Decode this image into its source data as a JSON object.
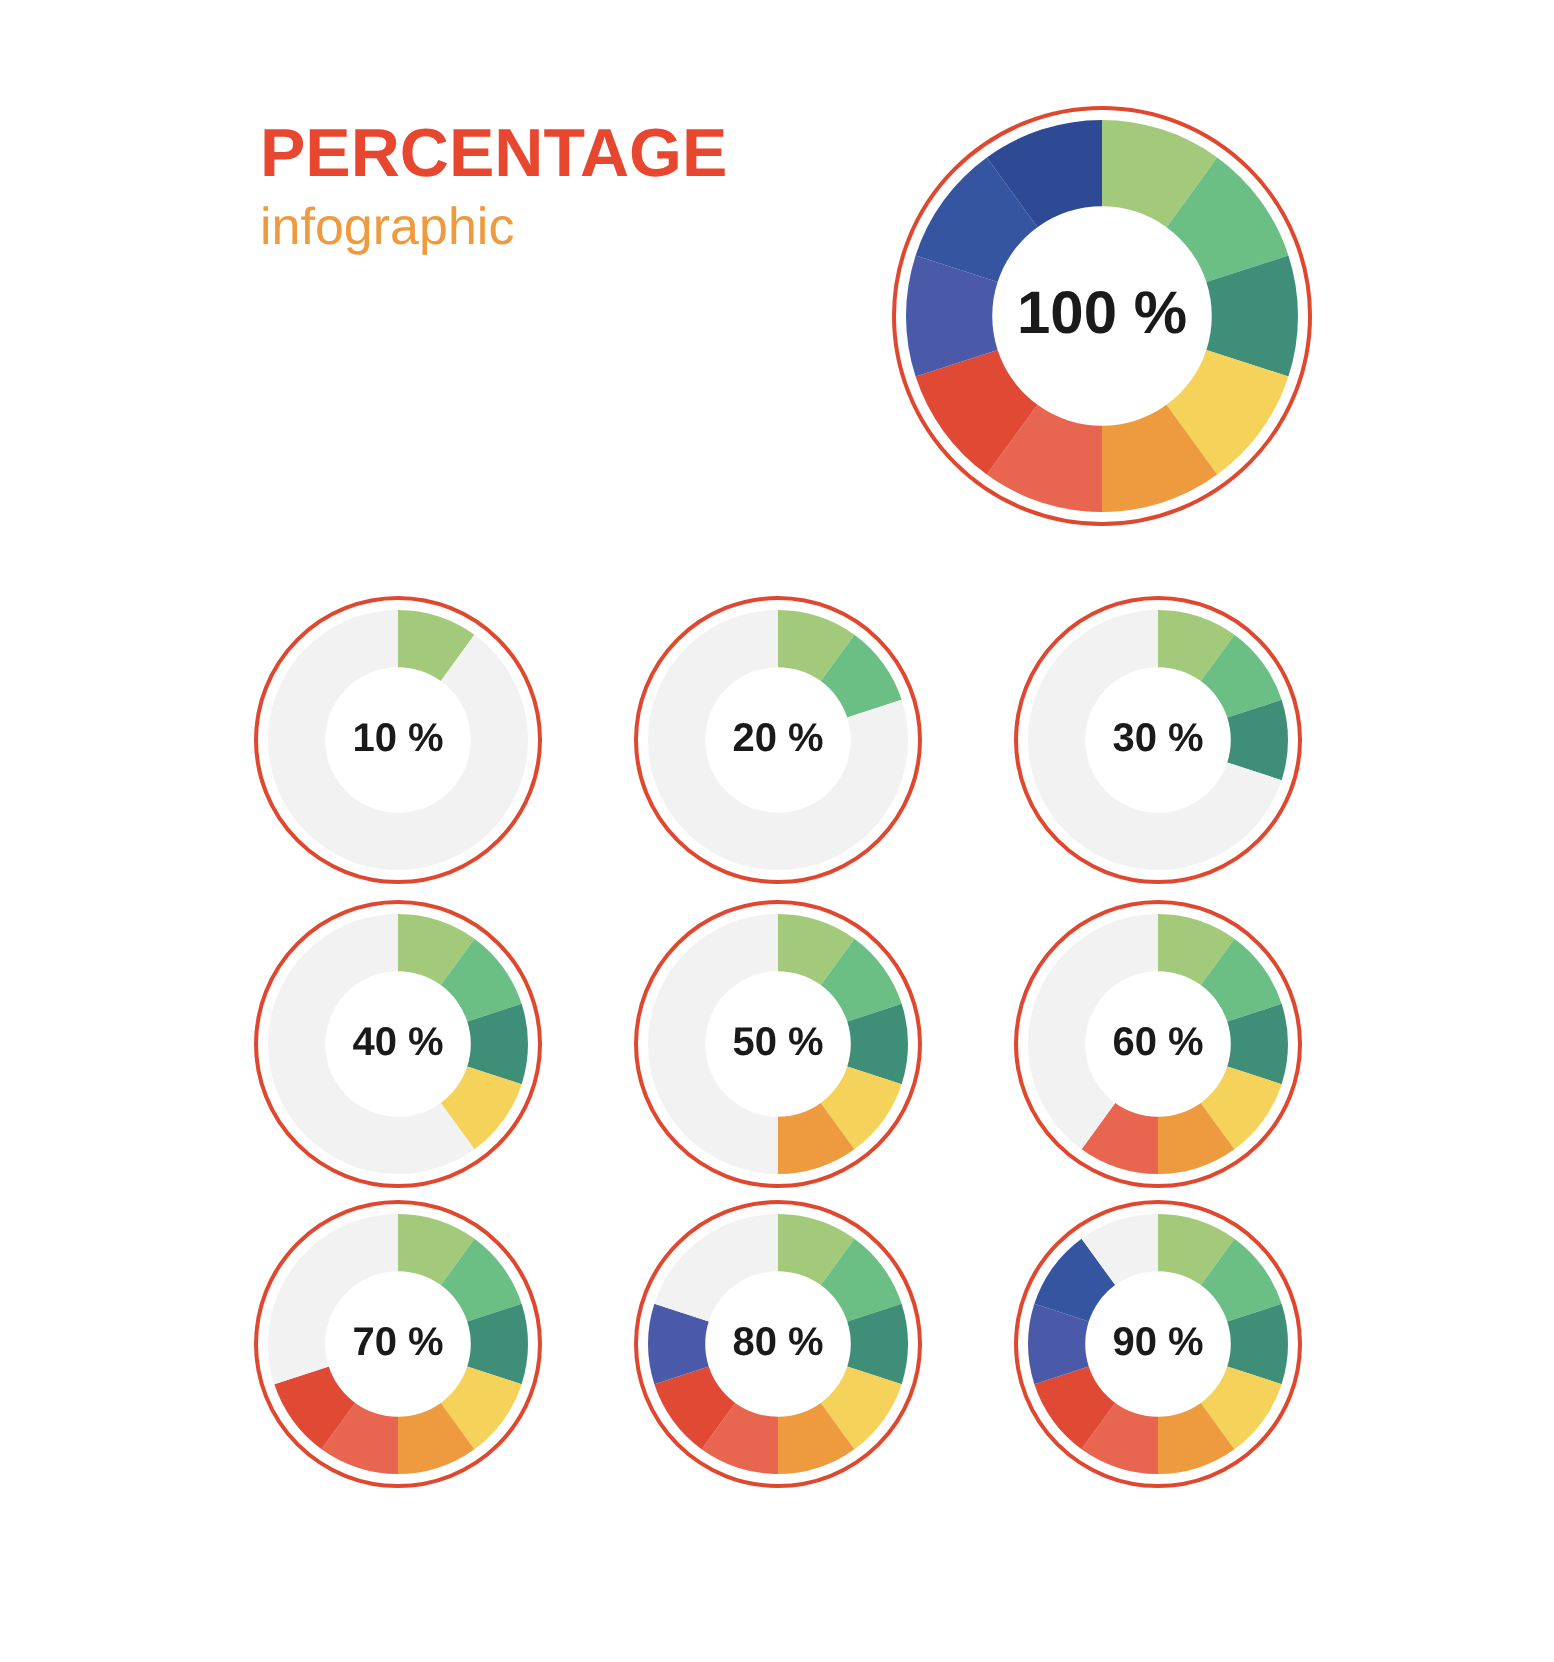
{
  "chart_data": [
    {
      "type": "donut",
      "title": "PERCENTAGE",
      "subtitle": "infographic",
      "categories": [
        null,
        null,
        null,
        null,
        null,
        null,
        null,
        null,
        null,
        null
      ],
      "values": [
        10,
        10,
        10,
        10,
        10,
        10,
        10,
        10,
        10,
        10
      ],
      "colors": [
        "#a3c97a",
        "#6cbf84",
        "#3f8f78",
        "#f5d35a",
        "#ee9a3f",
        "#e8664f",
        "#e04a35",
        "#4a5aa8",
        "#3555a0",
        "#2e4a94"
      ],
      "annotations": [
        "100 %"
      ]
    },
    {
      "type": "donut",
      "categories": [
        null,
        null
      ],
      "values": [
        10,
        90
      ],
      "colors": [
        "#a3c97a",
        "#f2f2f2"
      ],
      "annotations": [
        "10 %"
      ]
    },
    {
      "type": "donut",
      "categories": [
        null,
        null,
        null
      ],
      "values": [
        10,
        10,
        80
      ],
      "colors": [
        "#a3c97a",
        "#6cbf84",
        "#f2f2f2"
      ],
      "annotations": [
        "20 %"
      ]
    },
    {
      "type": "donut",
      "categories": [
        null,
        null,
        null,
        null
      ],
      "values": [
        10,
        10,
        10,
        70
      ],
      "colors": [
        "#a3c97a",
        "#6cbf84",
        "#3f8f78",
        "#f2f2f2"
      ],
      "annotations": [
        "30 %"
      ]
    },
    {
      "type": "donut",
      "categories": [
        null,
        null,
        null,
        null,
        null
      ],
      "values": [
        10,
        10,
        10,
        10,
        60
      ],
      "colors": [
        "#a3c97a",
        "#6cbf84",
        "#3f8f78",
        "#f5d35a",
        "#f2f2f2"
      ],
      "annotations": [
        "40 %"
      ]
    },
    {
      "type": "donut",
      "categories": [
        null,
        null,
        null,
        null,
        null,
        null
      ],
      "values": [
        10,
        10,
        10,
        10,
        10,
        50
      ],
      "colors": [
        "#a3c97a",
        "#6cbf84",
        "#3f8f78",
        "#f5d35a",
        "#ee9a3f",
        "#f2f2f2"
      ],
      "annotations": [
        "50 %"
      ]
    },
    {
      "type": "donut",
      "categories": [
        null,
        null,
        null,
        null,
        null,
        null,
        null
      ],
      "values": [
        10,
        10,
        10,
        10,
        10,
        10,
        40
      ],
      "colors": [
        "#a3c97a",
        "#6cbf84",
        "#3f8f78",
        "#f5d35a",
        "#ee9a3f",
        "#e8664f",
        "#f2f2f2"
      ],
      "annotations": [
        "60 %"
      ]
    },
    {
      "type": "donut",
      "categories": [
        null,
        null,
        null,
        null,
        null,
        null,
        null,
        null
      ],
      "values": [
        10,
        10,
        10,
        10,
        10,
        10,
        10,
        30
      ],
      "colors": [
        "#a3c97a",
        "#6cbf84",
        "#3f8f78",
        "#f5d35a",
        "#ee9a3f",
        "#e8664f",
        "#e04a35",
        "#f2f2f2"
      ],
      "annotations": [
        "70 %"
      ]
    },
    {
      "type": "donut",
      "categories": [
        null,
        null,
        null,
        null,
        null,
        null,
        null,
        null,
        null
      ],
      "values": [
        10,
        10,
        10,
        10,
        10,
        10,
        10,
        10,
        20
      ],
      "colors": [
        "#a3c97a",
        "#6cbf84",
        "#3f8f78",
        "#f5d35a",
        "#ee9a3f",
        "#e8664f",
        "#e04a35",
        "#4a5aa8",
        "#f2f2f2"
      ],
      "annotations": [
        "80 %"
      ]
    },
    {
      "type": "donut",
      "categories": [
        null,
        null,
        null,
        null,
        null,
        null,
        null,
        null,
        null,
        null
      ],
      "values": [
        10,
        10,
        10,
        10,
        10,
        10,
        10,
        10,
        10,
        10
      ],
      "colors": [
        "#a3c97a",
        "#6cbf84",
        "#3f8f78",
        "#f5d35a",
        "#ee9a3f",
        "#e8664f",
        "#e04a35",
        "#4a5aa8",
        "#3555a0",
        "#f2f2f2"
      ],
      "annotations": [
        "90 %"
      ]
    }
  ]
}
